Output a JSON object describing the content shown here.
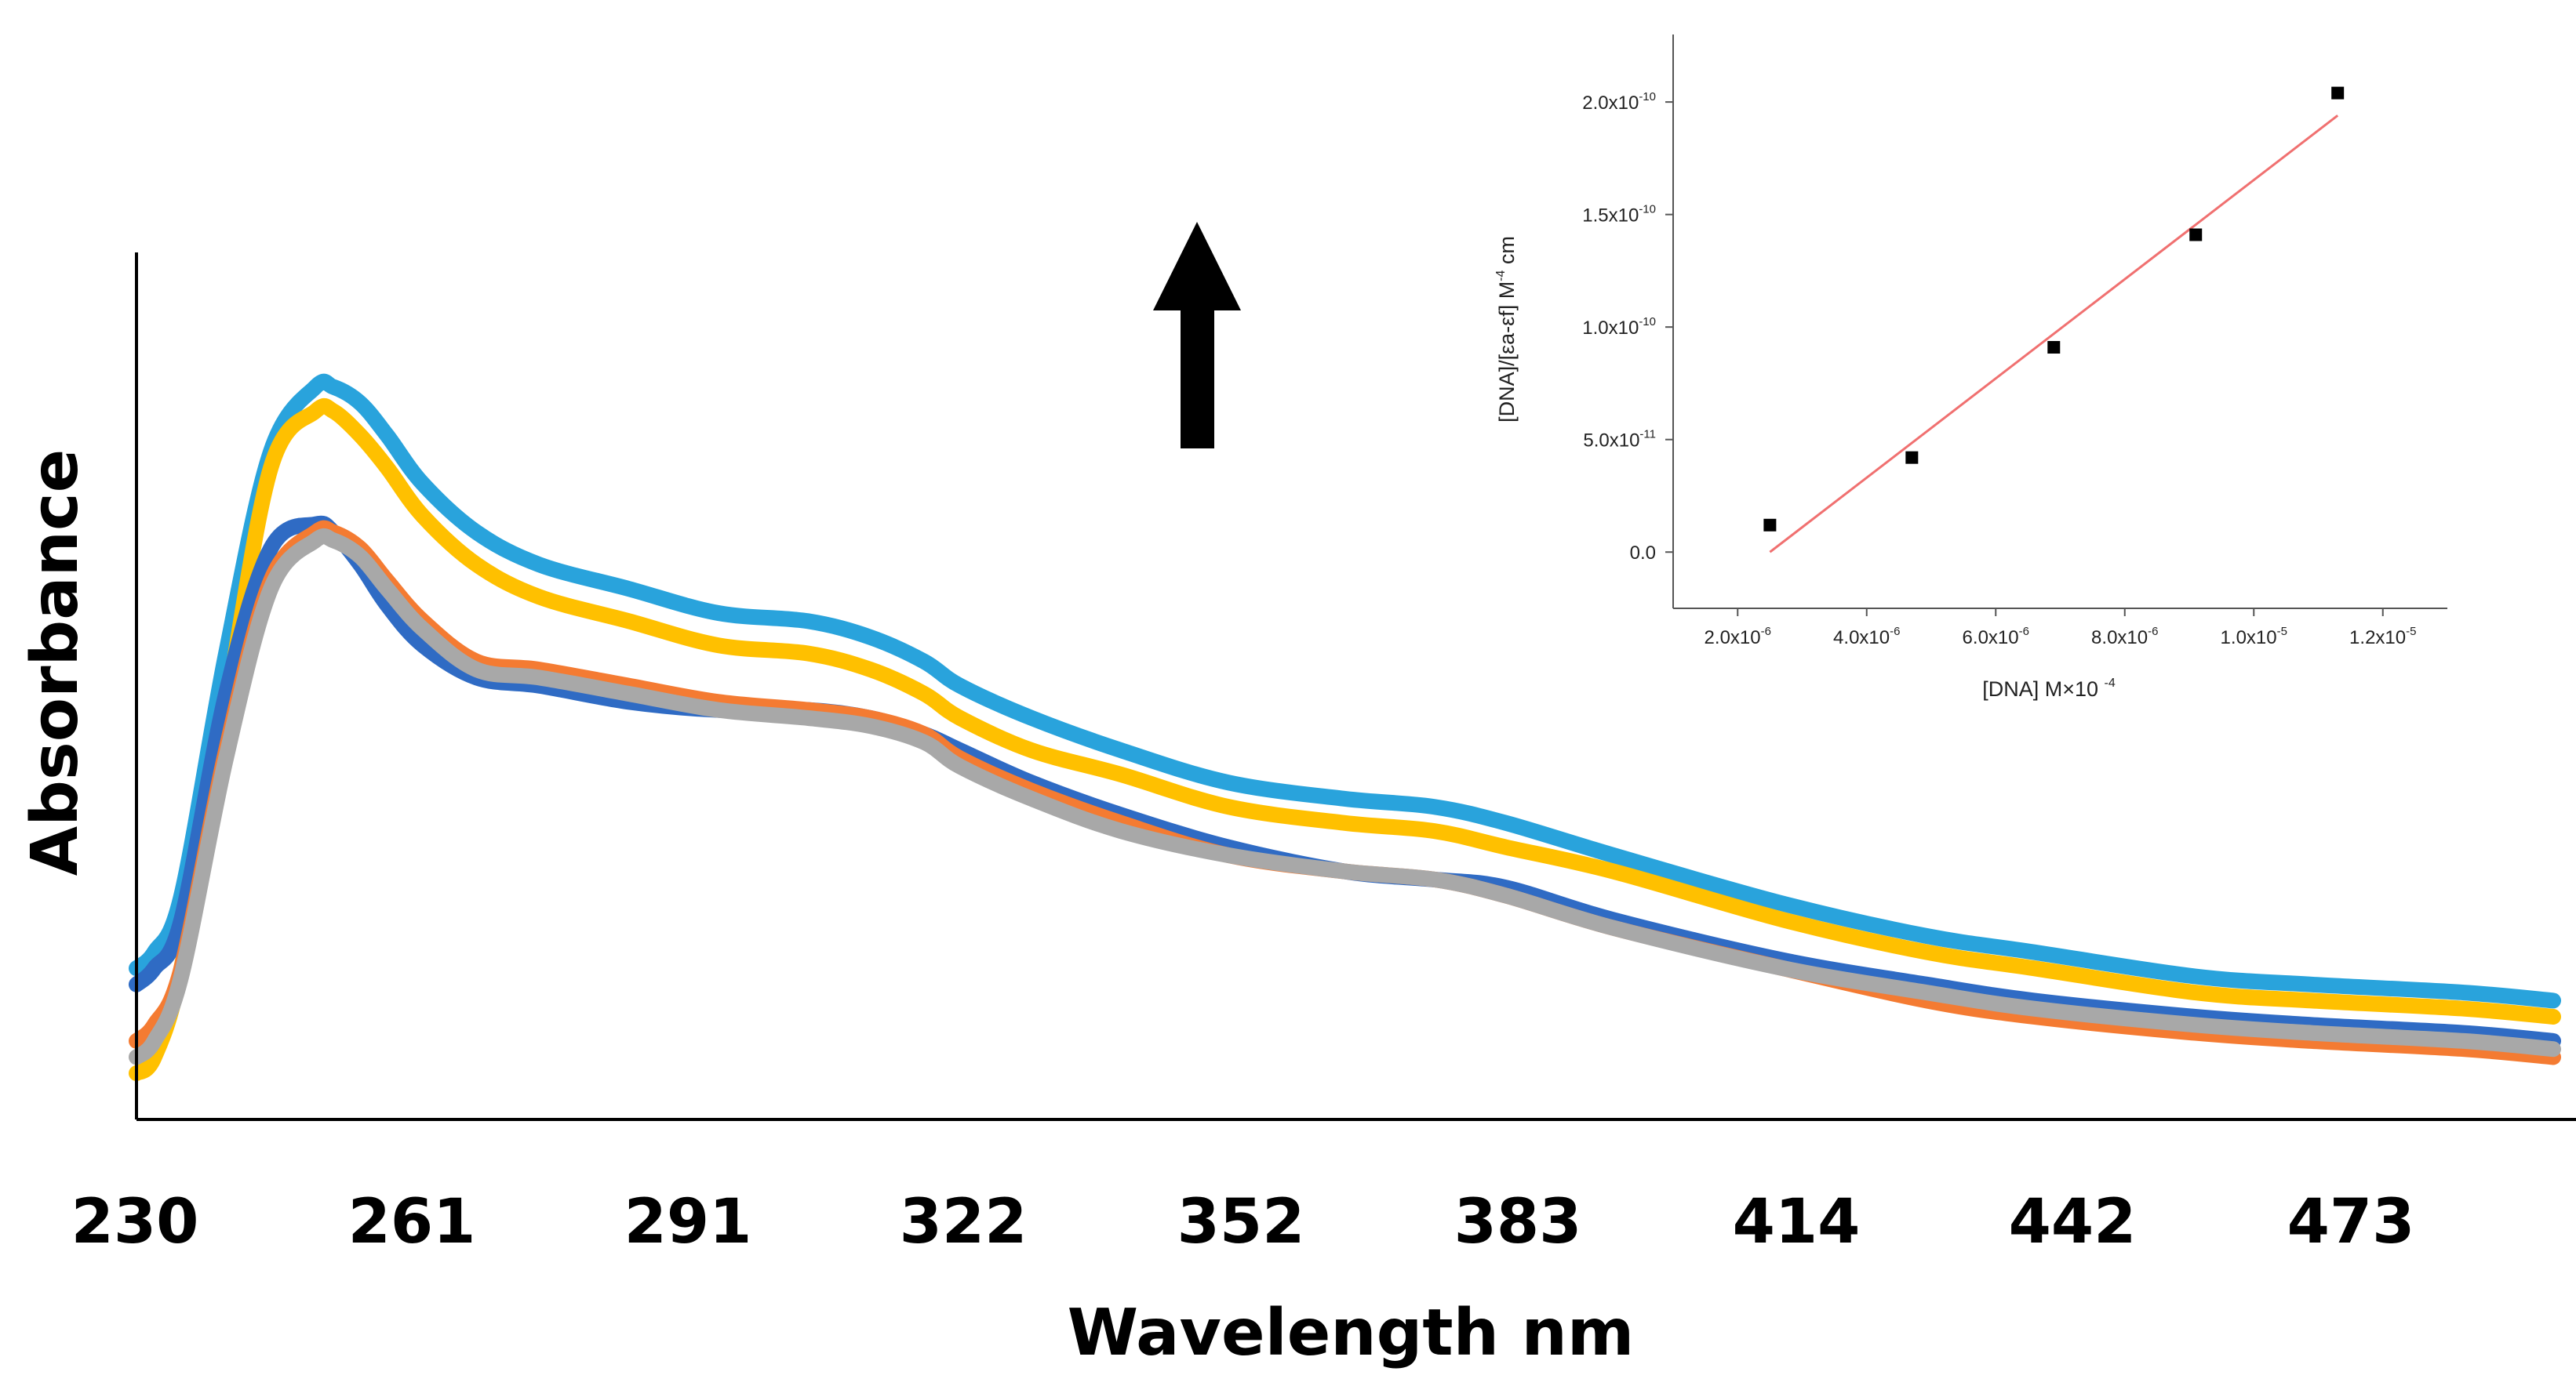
{
  "chart_data": [
    {
      "type": "line",
      "title": "",
      "xlabel": "Wavelength nm",
      "ylabel": "Absorbance",
      "x_tick_labels": [
        "230",
        "261",
        "291",
        "322",
        "352",
        "383",
        "414",
        "442",
        "473"
      ],
      "xlim": [
        230,
        500
      ],
      "ylim": [
        0,
        1
      ],
      "y_ticks_shown": false,
      "grid": false,
      "legend": "none",
      "annotation": "up-arrow",
      "series": [
        {
          "color": "#29a3dc",
          "x": [
            230,
            232,
            235,
            240,
            245,
            250,
            252,
            255,
            258,
            262,
            268,
            275,
            285,
            295,
            305,
            312,
            318,
            322,
            330,
            340,
            352,
            365,
            375,
            383,
            395,
            414,
            430,
            442,
            460,
            473,
            490,
            500
          ],
          "y": [
            0.16,
            0.18,
            0.25,
            0.55,
            0.8,
            0.88,
            0.88,
            0.86,
            0.82,
            0.76,
            0.7,
            0.66,
            0.63,
            0.6,
            0.59,
            0.57,
            0.54,
            0.51,
            0.47,
            0.43,
            0.39,
            0.37,
            0.36,
            0.34,
            0.3,
            0.24,
            0.2,
            0.18,
            0.15,
            0.14,
            0.13,
            0.12
          ]
        },
        {
          "color": "#ffc000",
          "x": [
            230,
            232,
            235,
            240,
            245,
            250,
            252,
            255,
            258,
            262,
            268,
            275,
            285,
            295,
            305,
            312,
            318,
            322,
            330,
            340,
            352,
            365,
            375,
            383,
            395,
            414,
            430,
            442,
            460,
            473,
            490,
            500
          ],
          "y": [
            0.03,
            0.05,
            0.16,
            0.48,
            0.78,
            0.85,
            0.85,
            0.82,
            0.78,
            0.72,
            0.66,
            0.62,
            0.59,
            0.56,
            0.55,
            0.53,
            0.5,
            0.47,
            0.43,
            0.4,
            0.36,
            0.34,
            0.33,
            0.31,
            0.28,
            0.22,
            0.18,
            0.16,
            0.13,
            0.12,
            0.11,
            0.1
          ]
        },
        {
          "color": "#2f6bc4",
          "x": [
            230,
            232,
            235,
            240,
            245,
            250,
            252,
            255,
            258,
            262,
            268,
            275,
            285,
            295,
            305,
            312,
            318,
            322,
            330,
            340,
            352,
            365,
            375,
            383,
            395,
            414,
            430,
            442,
            460,
            473,
            490,
            500
          ],
          "y": [
            0.14,
            0.16,
            0.22,
            0.5,
            0.68,
            0.71,
            0.7,
            0.66,
            0.61,
            0.56,
            0.52,
            0.51,
            0.49,
            0.48,
            0.48,
            0.47,
            0.45,
            0.43,
            0.39,
            0.35,
            0.31,
            0.28,
            0.27,
            0.26,
            0.22,
            0.17,
            0.14,
            0.12,
            0.1,
            0.09,
            0.08,
            0.07
          ]
        },
        {
          "color": "#f47b32",
          "x": [
            230,
            232,
            235,
            240,
            245,
            250,
            252,
            255,
            258,
            262,
            268,
            275,
            285,
            295,
            305,
            312,
            318,
            322,
            330,
            340,
            352,
            365,
            375,
            383,
            395,
            414,
            430,
            442,
            460,
            473,
            490,
            500
          ],
          "y": [
            0.07,
            0.09,
            0.16,
            0.43,
            0.64,
            0.7,
            0.7,
            0.68,
            0.64,
            0.59,
            0.54,
            0.53,
            0.51,
            0.49,
            0.48,
            0.47,
            0.45,
            0.42,
            0.38,
            0.34,
            0.3,
            0.28,
            0.27,
            0.25,
            0.21,
            0.16,
            0.12,
            0.1,
            0.08,
            0.07,
            0.06,
            0.05
          ]
        },
        {
          "color": "#a8a8a8",
          "x": [
            230,
            232,
            235,
            240,
            245,
            250,
            252,
            255,
            258,
            262,
            268,
            275,
            285,
            295,
            305,
            312,
            318,
            322,
            330,
            340,
            352,
            365,
            375,
            383,
            395,
            414,
            430,
            442,
            460,
            473,
            490,
            500
          ],
          "y": [
            0.05,
            0.07,
            0.15,
            0.42,
            0.63,
            0.69,
            0.69,
            0.67,
            0.63,
            0.58,
            0.53,
            0.52,
            0.5,
            0.48,
            0.47,
            0.46,
            0.44,
            0.41,
            0.37,
            0.33,
            0.3,
            0.28,
            0.27,
            0.25,
            0.21,
            0.16,
            0.13,
            0.11,
            0.09,
            0.08,
            0.07,
            0.06
          ]
        }
      ]
    },
    {
      "type": "scatter",
      "title": "",
      "xlabel_parts": [
        "[DNA] M",
        "×",
        "10 ",
        "-4"
      ],
      "ylabel_parts": [
        "[DNA]/[",
        "ε",
        "a-",
        "ε",
        "f] M",
        "-4",
        " cm"
      ],
      "x_ticks": [
        {
          "value": 2e-06,
          "mantissa": "2.0x10",
          "exp": "-6"
        },
        {
          "value": 4e-06,
          "mantissa": "4.0x10",
          "exp": "-6"
        },
        {
          "value": 6e-06,
          "mantissa": "6.0x10",
          "exp": "-6"
        },
        {
          "value": 8e-06,
          "mantissa": "8.0x10",
          "exp": "-6"
        },
        {
          "value": 1e-05,
          "mantissa": "1.0x10",
          "exp": "-5"
        },
        {
          "value": 1.2e-05,
          "mantissa": "1.2x10",
          "exp": "-5"
        }
      ],
      "y_ticks": [
        {
          "value": 0,
          "mantissa": "0.0",
          "exp": ""
        },
        {
          "value": 5e-11,
          "mantissa": "5.0x10",
          "exp": "-11"
        },
        {
          "value": 1e-10,
          "mantissa": "1.0x10",
          "exp": "-10"
        },
        {
          "value": 1.5e-10,
          "mantissa": "1.5x10",
          "exp": "-10"
        },
        {
          "value": 2e-10,
          "mantissa": "2.0x10",
          "exp": "-10"
        }
      ],
      "xlim": [
        1e-06,
        1.3e-05
      ],
      "ylim": [
        -2.5e-11,
        2.3e-10
      ],
      "points": [
        {
          "x": 2.5e-06,
          "y": 1.2e-11
        },
        {
          "x": 4.7e-06,
          "y": 4.2e-11
        },
        {
          "x": 6.9e-06,
          "y": 9.1e-11
        },
        {
          "x": 9.1e-06,
          "y": 1.41e-10
        },
        {
          "x": 1.13e-05,
          "y": 2.04e-10
        }
      ],
      "fit_line": {
        "x": [
          2.5e-06,
          1.13e-05
        ],
        "y": [
          0.0,
          1.94e-10
        ],
        "color": "#f07070"
      },
      "marker_color": "#000000",
      "grid": false,
      "legend": "none"
    }
  ]
}
